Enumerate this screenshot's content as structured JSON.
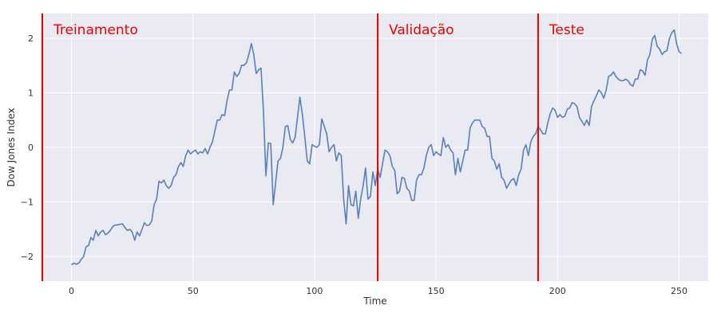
{
  "chart_data": {
    "type": "line",
    "xlabel": "Time",
    "ylabel": "Dow Jones Index",
    "xlim": [
      -12,
      262
    ],
    "ylim": [
      -2.45,
      2.45
    ],
    "xticks": [
      0,
      50,
      100,
      150,
      200,
      250
    ],
    "yticks": [
      -2,
      -1,
      0,
      1,
      2
    ],
    "tick_labels_x": [
      "0",
      "50",
      "100",
      "150",
      "200",
      "250"
    ],
    "tick_labels_y": [
      "−2",
      "−1",
      "0",
      "1",
      "2"
    ],
    "grid": true,
    "colors": {
      "background": "#eaeaf2",
      "grid": "#ffffff",
      "line": "#5a7fba",
      "splits": "#ee0000"
    },
    "splits": [
      {
        "x": -12,
        "label": "Treinamento"
      },
      {
        "x": 126,
        "label": "Validação"
      },
      {
        "x": 192,
        "label": "Teste"
      }
    ],
    "series": [
      {
        "keypoints": [
          [
            0,
            -2.15
          ],
          [
            1,
            -2.12
          ],
          [
            2,
            -2.14
          ],
          [
            3,
            -2.12
          ],
          [
            4,
            -2.05
          ],
          [
            5,
            -2.0
          ],
          [
            6,
            -1.82
          ],
          [
            7,
            -1.8
          ],
          [
            8,
            -1.65
          ],
          [
            9,
            -1.7
          ],
          [
            10,
            -1.52
          ],
          [
            11,
            -1.62
          ],
          [
            12,
            -1.55
          ],
          [
            13,
            -1.52
          ],
          [
            14,
            -1.6
          ],
          [
            15,
            -1.57
          ],
          [
            16,
            -1.52
          ],
          [
            17,
            -1.45
          ],
          [
            18,
            -1.42
          ],
          [
            19,
            -1.42
          ],
          [
            20,
            -1.41
          ],
          [
            21,
            -1.4
          ],
          [
            22,
            -1.47
          ],
          [
            23,
            -1.52
          ],
          [
            24,
            -1.5
          ],
          [
            25,
            -1.55
          ],
          [
            26,
            -1.7
          ],
          [
            27,
            -1.55
          ],
          [
            28,
            -1.62
          ],
          [
            29,
            -1.5
          ],
          [
            30,
            -1.38
          ],
          [
            31,
            -1.43
          ],
          [
            32,
            -1.42
          ],
          [
            33,
            -1.35
          ],
          [
            34,
            -1.05
          ],
          [
            35,
            -0.95
          ],
          [
            36,
            -0.62
          ],
          [
            37,
            -0.65
          ],
          [
            38,
            -0.6
          ],
          [
            39,
            -0.7
          ],
          [
            40,
            -0.75
          ],
          [
            41,
            -0.7
          ],
          [
            42,
            -0.55
          ],
          [
            43,
            -0.5
          ],
          [
            44,
            -0.35
          ],
          [
            45,
            -0.28
          ],
          [
            46,
            -0.35
          ],
          [
            47,
            -0.15
          ],
          [
            48,
            -0.05
          ],
          [
            49,
            -0.12
          ],
          [
            50,
            -0.08
          ],
          [
            51,
            -0.05
          ],
          [
            52,
            -0.12
          ],
          [
            53,
            -0.08
          ],
          [
            54,
            -0.1
          ],
          [
            55,
            -0.02
          ],
          [
            56,
            -0.12
          ],
          [
            57,
            0.0
          ],
          [
            58,
            0.1
          ],
          [
            59,
            0.3
          ],
          [
            60,
            0.5
          ],
          [
            61,
            0.5
          ],
          [
            62,
            0.6
          ],
          [
            63,
            0.58
          ],
          [
            64,
            0.85
          ],
          [
            65,
            1.05
          ],
          [
            66,
            1.05
          ],
          [
            67,
            1.38
          ],
          [
            68,
            1.3
          ],
          [
            69,
            1.35
          ],
          [
            70,
            1.5
          ],
          [
            71,
            1.5
          ],
          [
            72,
            1.55
          ],
          [
            73,
            1.7
          ],
          [
            74,
            1.9
          ],
          [
            75,
            1.7
          ],
          [
            76,
            1.35
          ],
          [
            77,
            1.42
          ],
          [
            78,
            1.45
          ],
          [
            79,
            0.65
          ],
          [
            80,
            -0.52
          ],
          [
            81,
            0.08
          ],
          [
            82,
            0.07
          ],
          [
            83,
            -1.05
          ],
          [
            84,
            -0.65
          ],
          [
            85,
            -0.25
          ],
          [
            86,
            -0.2
          ],
          [
            87,
            0.0
          ],
          [
            88,
            0.38
          ],
          [
            89,
            0.4
          ],
          [
            90,
            0.15
          ],
          [
            91,
            0.08
          ],
          [
            92,
            0.18
          ],
          [
            93,
            0.55
          ],
          [
            94,
            0.92
          ],
          [
            95,
            0.6
          ],
          [
            96,
            0.2
          ],
          [
            97,
            -0.25
          ],
          [
            98,
            -0.3
          ],
          [
            99,
            0.05
          ],
          [
            100,
            0.02
          ],
          [
            101,
            0.0
          ],
          [
            102,
            0.05
          ],
          [
            103,
            0.52
          ],
          [
            104,
            0.38
          ],
          [
            105,
            0.25
          ],
          [
            106,
            -0.08
          ],
          [
            107,
            0.0
          ],
          [
            108,
            0.05
          ],
          [
            109,
            -0.25
          ],
          [
            110,
            -0.1
          ],
          [
            111,
            -0.15
          ],
          [
            112,
            -0.95
          ],
          [
            113,
            -1.4
          ],
          [
            114,
            -0.7
          ],
          [
            115,
            -1.05
          ],
          [
            116,
            -1.07
          ],
          [
            117,
            -0.8
          ],
          [
            118,
            -1.3
          ],
          [
            119,
            -0.95
          ],
          [
            120,
            -0.7
          ],
          [
            121,
            -0.38
          ],
          [
            122,
            -0.95
          ],
          [
            123,
            -0.9
          ],
          [
            124,
            -0.45
          ],
          [
            125,
            -0.7
          ],
          [
            126,
            -0.4
          ],
          [
            127,
            -0.55
          ],
          [
            128,
            -0.3
          ],
          [
            129,
            -0.05
          ],
          [
            130,
            -0.08
          ],
          [
            131,
            -0.15
          ],
          [
            132,
            -0.35
          ],
          [
            133,
            -0.42
          ],
          [
            134,
            -0.85
          ],
          [
            135,
            -0.8
          ],
          [
            136,
            -0.55
          ],
          [
            137,
            -0.57
          ],
          [
            138,
            -0.75
          ],
          [
            139,
            -0.8
          ],
          [
            140,
            -0.97
          ],
          [
            141,
            -0.97
          ],
          [
            142,
            -0.6
          ],
          [
            143,
            -0.5
          ],
          [
            144,
            -0.5
          ],
          [
            145,
            -0.38
          ],
          [
            146,
            -0.15
          ],
          [
            147,
            0.0
          ],
          [
            148,
            0.05
          ],
          [
            149,
            -0.15
          ],
          [
            150,
            -0.08
          ],
          [
            151,
            -0.12
          ],
          [
            152,
            -0.15
          ],
          [
            153,
            0.18
          ],
          [
            154,
            0.0
          ],
          [
            155,
            0.05
          ],
          [
            156,
            -0.05
          ],
          [
            157,
            -0.1
          ],
          [
            158,
            -0.5
          ],
          [
            159,
            -0.2
          ],
          [
            160,
            -0.45
          ],
          [
            161,
            -0.25
          ],
          [
            162,
            -0.05
          ],
          [
            163,
            -0.05
          ],
          [
            164,
            0.35
          ],
          [
            165,
            0.45
          ],
          [
            166,
            0.5
          ],
          [
            167,
            0.5
          ],
          [
            168,
            0.5
          ],
          [
            169,
            0.38
          ],
          [
            170,
            0.35
          ],
          [
            171,
            0.2
          ],
          [
            172,
            0.2
          ],
          [
            173,
            -0.2
          ],
          [
            174,
            -0.25
          ],
          [
            175,
            -0.4
          ],
          [
            176,
            -0.3
          ],
          [
            177,
            -0.55
          ],
          [
            178,
            -0.6
          ],
          [
            179,
            -0.75
          ],
          [
            180,
            -0.67
          ],
          [
            181,
            -0.6
          ],
          [
            182,
            -0.57
          ],
          [
            183,
            -0.7
          ],
          [
            184,
            -0.5
          ],
          [
            185,
            -0.4
          ],
          [
            186,
            -0.05
          ],
          [
            187,
            0.05
          ],
          [
            188,
            -0.15
          ],
          [
            189,
            0.1
          ],
          [
            190,
            0.2
          ],
          [
            191,
            0.25
          ],
          [
            192,
            0.38
          ],
          [
            193,
            0.32
          ],
          [
            194,
            0.25
          ],
          [
            195,
            0.25
          ],
          [
            196,
            0.45
          ],
          [
            197,
            0.62
          ],
          [
            198,
            0.72
          ],
          [
            199,
            0.68
          ],
          [
            200,
            0.55
          ],
          [
            201,
            0.6
          ],
          [
            202,
            0.55
          ],
          [
            203,
            0.57
          ],
          [
            204,
            0.7
          ],
          [
            205,
            0.72
          ],
          [
            206,
            0.82
          ],
          [
            207,
            0.8
          ],
          [
            208,
            0.75
          ],
          [
            209,
            0.55
          ],
          [
            210,
            0.48
          ],
          [
            211,
            0.4
          ],
          [
            212,
            0.5
          ],
          [
            213,
            0.4
          ],
          [
            214,
            0.75
          ],
          [
            215,
            0.85
          ],
          [
            216,
            0.95
          ],
          [
            217,
            1.05
          ],
          [
            218,
            1.0
          ],
          [
            219,
            0.9
          ],
          [
            220,
            1.05
          ],
          [
            221,
            1.3
          ],
          [
            222,
            1.32
          ],
          [
            223,
            1.38
          ],
          [
            224,
            1.3
          ],
          [
            225,
            1.25
          ],
          [
            226,
            1.22
          ],
          [
            227,
            1.22
          ],
          [
            228,
            1.25
          ],
          [
            229,
            1.22
          ],
          [
            230,
            1.15
          ],
          [
            231,
            1.12
          ],
          [
            232,
            1.25
          ],
          [
            233,
            1.25
          ],
          [
            234,
            1.42
          ],
          [
            235,
            1.4
          ],
          [
            236,
            1.32
          ],
          [
            237,
            1.6
          ],
          [
            238,
            1.7
          ],
          [
            239,
            1.98
          ],
          [
            240,
            2.05
          ],
          [
            241,
            1.85
          ],
          [
            242,
            1.8
          ],
          [
            243,
            1.7
          ],
          [
            244,
            1.75
          ],
          [
            245,
            1.77
          ],
          [
            246,
            1.98
          ],
          [
            247,
            2.1
          ],
          [
            248,
            2.15
          ],
          [
            249,
            1.9
          ],
          [
            250,
            1.75
          ],
          [
            251,
            1.72
          ]
        ]
      }
    ]
  }
}
